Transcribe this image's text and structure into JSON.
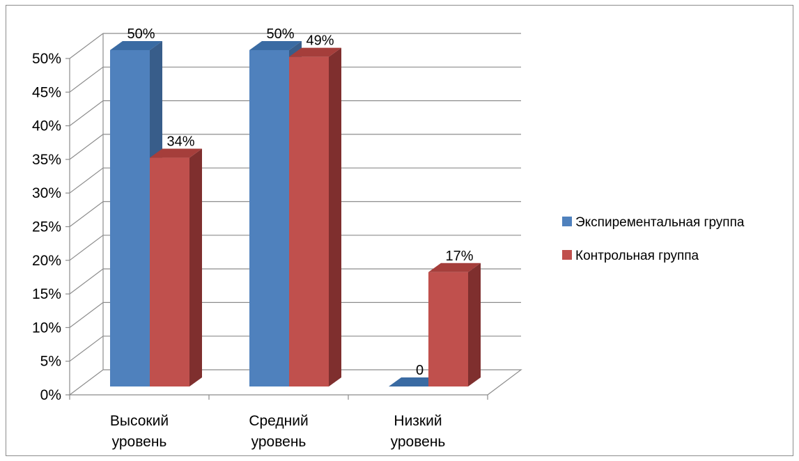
{
  "chart_data": {
    "type": "bar",
    "style": "3d-clustered-column",
    "categories": [
      [
        "Высокий",
        "уровень"
      ],
      [
        "Средний",
        "уровень"
      ],
      [
        "Низкий",
        "уровень"
      ]
    ],
    "series": [
      {
        "name": "Экспирементальная группа",
        "values": [
          0.5,
          0.5,
          0.0
        ],
        "labels": [
          "50%",
          "50%",
          "0"
        ],
        "color": "#4f81bd",
        "side_color": "#385d8a",
        "top_color": "#3a6ba3"
      },
      {
        "name": "Контрольная группа",
        "values": [
          0.34,
          0.49,
          0.17
        ],
        "labels": [
          "34%",
          "49%",
          "17%"
        ],
        "color": "#c0504d",
        "side_color": "#7f2f2e",
        "top_color": "#a53e3b"
      }
    ],
    "y_ticks": [
      "0%",
      "5%",
      "10%",
      "15%",
      "20%",
      "25%",
      "30%",
      "35%",
      "40%",
      "45%",
      "50%"
    ],
    "ylim": [
      0,
      0.5
    ],
    "grid": true,
    "legend_position": "right"
  }
}
